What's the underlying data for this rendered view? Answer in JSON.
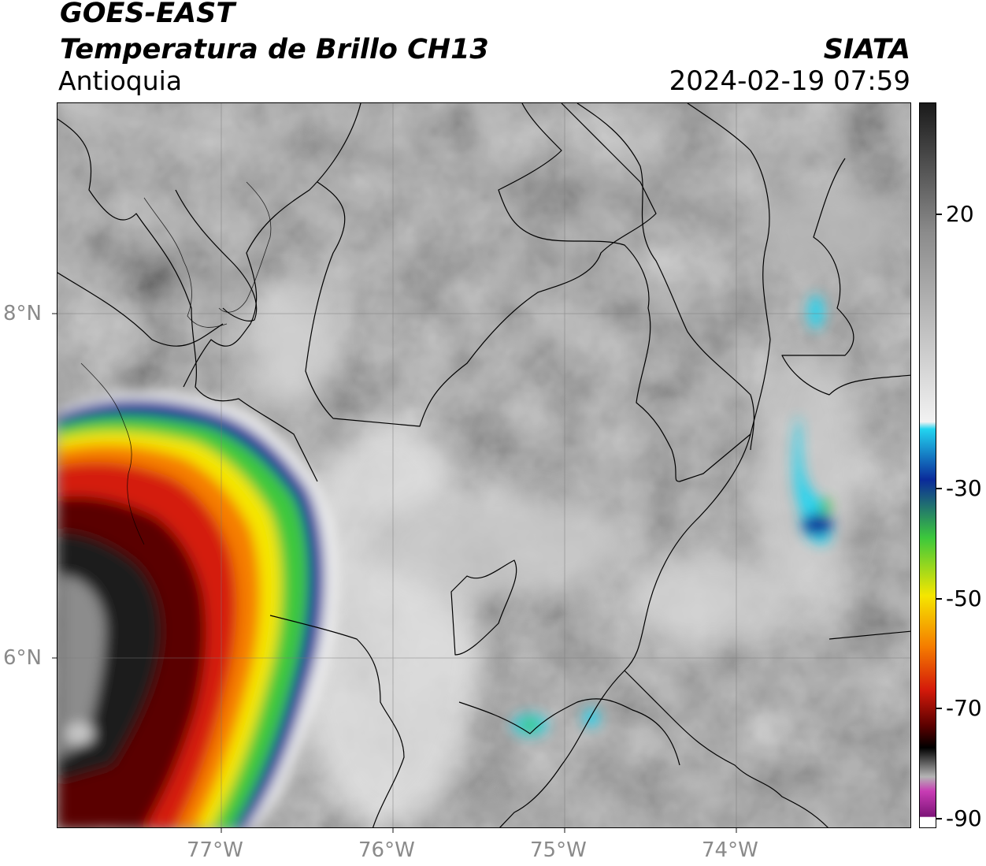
{
  "header": {
    "satellite": "GOES-EAST",
    "product": "Temperatura de Brillo CH13",
    "region": "Antioquia",
    "organization": "SIATA",
    "timestamp": "2024-02-19 07:59"
  },
  "map": {
    "lon_range": [
      -77.95,
      -73.0
    ],
    "lat_range": [
      5.0,
      9.2
    ],
    "lat_ticks": [
      {
        "value": 8,
        "label": "8°N"
      },
      {
        "value": 6,
        "label": "6°N"
      }
    ],
    "lon_ticks": [
      {
        "value": -77,
        "label": "77°W"
      },
      {
        "value": -76,
        "label": "76°W"
      },
      {
        "value": -75,
        "label": "75°W"
      },
      {
        "value": -74,
        "label": "74°W"
      }
    ],
    "grid": true,
    "basemap": "grayscale infrared brightness temperature with department and coastline boundaries"
  },
  "colorbar": {
    "min": -90,
    "max": 40,
    "ticks": [
      {
        "value": 20,
        "label": "20"
      },
      {
        "value": -30,
        "label": "-30"
      },
      {
        "value": -50,
        "label": "-50"
      },
      {
        "value": -70,
        "label": "-70"
      },
      {
        "value": -90,
        "label": "-90"
      }
    ],
    "colors": {
      "warm": "#1a1a1a",
      "neutral": "#8c8c8c",
      "near_zero": "#f2f2f2",
      "cyan": "#22d4f0",
      "blue": "#0a2a9a",
      "green": "#3cc83c",
      "yellow": "#f5e600",
      "orange": "#f57d00",
      "red": "#d41a0a",
      "dark_red": "#5a0000",
      "black": "#000000",
      "gray_cold": "#b4b4b4",
      "magenta": "#c83cb4",
      "purple": "#7d1478"
    }
  }
}
